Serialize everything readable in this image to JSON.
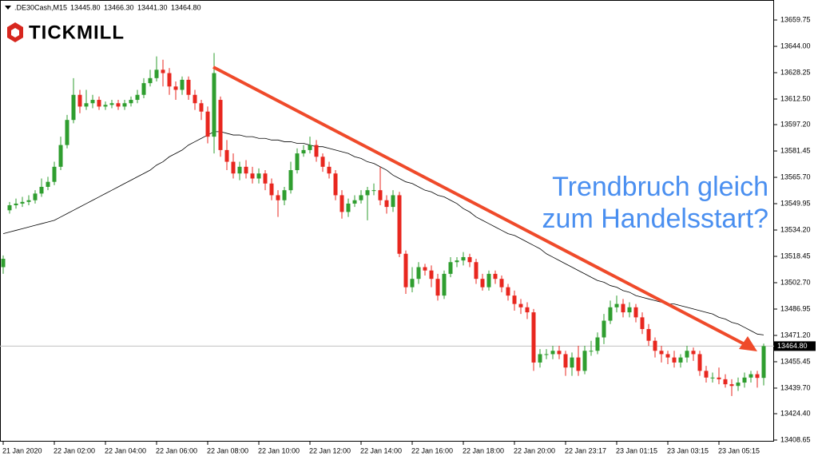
{
  "header": {
    "symbol": ".DE30Cash,M15",
    "ohlc": [
      "13445.80",
      "13466.30",
      "13441.30",
      "13464.80"
    ]
  },
  "logo": "TICKMILL",
  "chart_data": {
    "type": "candlestick",
    "annotation": [
      "Trendbruch gleich",
      "zum Handelsstart?"
    ],
    "categories": [
      "21 Jan 2020",
      null,
      null,
      null,
      null,
      null,
      null,
      null,
      "22 Jan 02:00",
      null,
      null,
      null,
      null,
      null,
      null,
      null,
      "22 Jan 04:00",
      null,
      null,
      null,
      null,
      null,
      null,
      null,
      "22 Jan 06:00",
      null,
      null,
      null,
      null,
      null,
      null,
      null,
      "22 Jan 08:00",
      null,
      null,
      null,
      null,
      null,
      null,
      null,
      "22 Jan 10:00",
      null,
      null,
      null,
      null,
      null,
      null,
      null,
      "22 Jan 12:00",
      null,
      null,
      null,
      null,
      null,
      null,
      null,
      "22 Jan 14:00",
      null,
      null,
      null,
      null,
      null,
      null,
      null,
      "22 Jan 16:00",
      null,
      null,
      null,
      null,
      null,
      null,
      null,
      "22 Jan 18:00",
      null,
      null,
      null,
      null,
      null,
      null,
      null,
      "22 Jan 20:00",
      null,
      null,
      null,
      null,
      null,
      null,
      null,
      "22 Jan 23:17",
      null,
      null,
      null,
      null,
      null,
      null,
      null,
      "23 Jan 01:15",
      null,
      null,
      null,
      null,
      null,
      null,
      null,
      "23 Jan 03:15",
      null,
      null,
      null,
      null,
      null,
      null,
      null,
      "23 Jan 05:15",
      null,
      null,
      null,
      null,
      null,
      null,
      null
    ],
    "open": [
      13512,
      13546,
      13549,
      13550,
      13551,
      13552,
      13556,
      13560,
      13563,
      13572,
      13585,
      13600,
      13615,
      13608,
      13610,
      13612,
      13608,
      13609,
      13610,
      13608,
      13610,
      13612,
      13615,
      13622,
      13625,
      13630,
      13628,
      13620,
      13618,
      13624,
      13615,
      13610,
      13605,
      13590,
      13612,
      13582,
      13575,
      13568,
      13572,
      13568,
      13565,
      13568,
      13562,
      13555,
      13552,
      13558,
      13570,
      13580,
      13582,
      13585,
      13578,
      13572,
      13568,
      13555,
      13545,
      13550,
      13552,
      13555,
      13558,
      13558,
      13552,
      13548,
      13555,
      13520,
      13500,
      13505,
      13512,
      13510,
      13505,
      13495,
      13508,
      13515,
      13516,
      13518,
      13515,
      13505,
      13500,
      13508,
      13505,
      13500,
      13495,
      13490,
      13488,
      13485,
      13455,
      13460,
      13460,
      13462,
      13460,
      13452,
      13458,
      13450,
      13462,
      13462,
      13470,
      13480,
      13488,
      13490,
      13485,
      13488,
      13482,
      13475,
      13468,
      13462,
      13460,
      13458,
      13455,
      13458,
      13462,
      13460,
      13450,
      13446,
      13446,
      13445,
      13442,
      13441,
      13443,
      13446,
      13448,
      13445.8
    ],
    "high": [
      13519,
      13551,
      13553,
      13554,
      13555,
      13558,
      13565,
      13566,
      13575,
      13590,
      13603,
      13625,
      13618,
      13618,
      13615,
      13614,
      13611,
      13612,
      13612,
      13612,
      13614,
      13618,
      13625,
      13630,
      13638,
      13636,
      13631,
      13623,
      13626,
      13626,
      13618,
      13612,
      13608,
      13640,
      13614,
      13588,
      13580,
      13575,
      13576,
      13572,
      13571,
      13570,
      13565,
      13558,
      13560,
      13575,
      13583,
      13585,
      13590,
      13588,
      13580,
      13575,
      13570,
      13558,
      13553,
      13555,
      13558,
      13560,
      13562,
      13572,
      13555,
      13558,
      13557,
      13522,
      13512,
      13515,
      13514,
      13513,
      13508,
      13510,
      13518,
      13518,
      13521,
      13520,
      13517,
      13508,
      13510,
      13510,
      13507,
      13502,
      13498,
      13493,
      13491,
      13487,
      13463,
      13463,
      13465,
      13465,
      13462,
      13461,
      13465,
      13465,
      13468,
      13473,
      13484,
      13492,
      13495,
      13493,
      13491,
      13490,
      13485,
      13478,
      13470,
      13465,
      13462,
      13462,
      13460,
      13465,
      13464,
      13462,
      13453,
      13449,
      13452,
      13448,
      13445,
      13446,
      13449,
      13450,
      13450,
      13466.3
    ],
    "low": [
      13508,
      13544,
      13547,
      13548,
      13549,
      13550,
      13554,
      13558,
      13561,
      13570,
      13583,
      13598,
      13604,
      13606,
      13607,
      13606,
      13606,
      13607,
      13606,
      13606,
      13608,
      13610,
      13613,
      13620,
      13623,
      13620,
      13615,
      13612,
      13615,
      13612,
      13606,
      13600,
      13586,
      13580,
      13578,
      13570,
      13565,
      13564,
      13565,
      13562,
      13562,
      13558,
      13552,
      13542,
      13549,
      13556,
      13568,
      13578,
      13580,
      13575,
      13569,
      13565,
      13552,
      13541,
      13542,
      13548,
      13550,
      13540,
      13555,
      13549,
      13544,
      13545,
      13518,
      13496,
      13497,
      13502,
      13507,
      13500,
      13492,
      13493,
      13506,
      13512,
      13513,
      13512,
      13502,
      13498,
      13498,
      13502,
      13497,
      13492,
      13486,
      13484,
      13481,
      13450,
      13452,
      13457,
      13457,
      13457,
      13447,
      13447,
      13447,
      13448,
      13459,
      13460,
      13466,
      13478,
      13485,
      13482,
      13482,
      13479,
      13472,
      13465,
      13458,
      13455,
      13454,
      13452,
      13452,
      13455,
      13456,
      13447,
      13443,
      13443,
      13442,
      13440,
      13435,
      13438,
      13440,
      13443,
      13440,
      13441.3
    ],
    "close": [
      13517,
      13549,
      13550,
      13551,
      13552,
      13556,
      13560,
      13563,
      13572,
      13585,
      13600,
      13615,
      13608,
      13610,
      13612,
      13608,
      13609,
      13610,
      13608,
      13610,
      13612,
      13615,
      13622,
      13625,
      13630,
      13628,
      13620,
      13618,
      13624,
      13615,
      13610,
      13605,
      13590,
      13628,
      13582,
      13575,
      13568,
      13572,
      13568,
      13565,
      13568,
      13562,
      13555,
      13552,
      13558,
      13570,
      13580,
      13582,
      13585,
      13578,
      13572,
      13568,
      13555,
      13545,
      13550,
      13552,
      13555,
      13558,
      13558,
      13552,
      13548,
      13555,
      13520,
      13500,
      13505,
      13512,
      13510,
      13505,
      13495,
      13508,
      13515,
      13516,
      13518,
      13515,
      13505,
      13500,
      13508,
      13505,
      13500,
      13495,
      13490,
      13488,
      13485,
      13455,
      13460,
      13460,
      13462,
      13460,
      13452,
      13458,
      13450,
      13462,
      13462,
      13470,
      13480,
      13488,
      13490,
      13485,
      13488,
      13482,
      13475,
      13468,
      13462,
      13460,
      13458,
      13455,
      13458,
      13462,
      13460,
      13450,
      13446,
      13446,
      13445,
      13442,
      13441,
      13443,
      13446,
      13448,
      13445.8,
      13464.8
    ],
    "up_color": "#2f9e2f",
    "down_color": "#e8271f",
    "ma": {
      "color": "#000000",
      "values": [
        13532,
        13533,
        13534,
        13535,
        13536,
        13537,
        13538,
        13539,
        13540,
        13542,
        13544,
        13546,
        13548,
        13550,
        13552,
        13554,
        13556,
        13558,
        13560,
        13562,
        13564,
        13566,
        13568,
        13570,
        13573,
        13575,
        13578,
        13580,
        13582,
        13585,
        13587,
        13589,
        13591,
        13593,
        13593,
        13592,
        13591,
        13591,
        13590,
        13590,
        13589,
        13589,
        13588,
        13588,
        13587,
        13587,
        13586,
        13586,
        13585,
        13584,
        13584,
        13583,
        13582,
        13581,
        13580,
        13578,
        13577,
        13575,
        13574,
        13572,
        13570,
        13567,
        13565,
        13563,
        13562,
        13560,
        13558,
        13557,
        13555,
        13554,
        13552,
        13550,
        13547,
        13545,
        13542,
        13540,
        13538,
        13536,
        13534,
        13532,
        13531,
        13529,
        13527,
        13525,
        13523,
        13520,
        13518,
        13516,
        13514,
        13512,
        13510,
        13508,
        13506,
        13504,
        13503,
        13501,
        13500,
        13498,
        13497,
        13495,
        13494,
        13493,
        13492,
        13491,
        13490,
        13490,
        13489,
        13488,
        13487,
        13486,
        13485,
        13484,
        13482,
        13481,
        13479,
        13478,
        13476,
        13474,
        13472,
        13471.5
      ]
    },
    "last_price": {
      "value": 13464.8,
      "label": "13464.80"
    },
    "ylim": [
      13407.7,
      13671.7
    ],
    "yticks": [
      13659.75,
      {
        "value": 13644,
        "label": "13644.00"
      },
      13628.25,
      {
        "value": 13612.5,
        "label": "13612.50"
      },
      {
        "value": 13597.2,
        "label": "13597.20"
      },
      13581.45,
      {
        "value": 13565.7,
        "label": "13565.70"
      },
      13549.95,
      {
        "value": 13534.2,
        "label": "13534.20"
      },
      13518.45,
      {
        "value": 13502.7,
        "label": "13502.70"
      },
      13486.95,
      {
        "value": 13471.2,
        "label": "13471.20"
      },
      13455.45,
      {
        "value": 13439.7,
        "label": "13439.70"
      },
      {
        "value": 13424.4,
        "label": "13424.40"
      },
      13408.65
    ]
  }
}
